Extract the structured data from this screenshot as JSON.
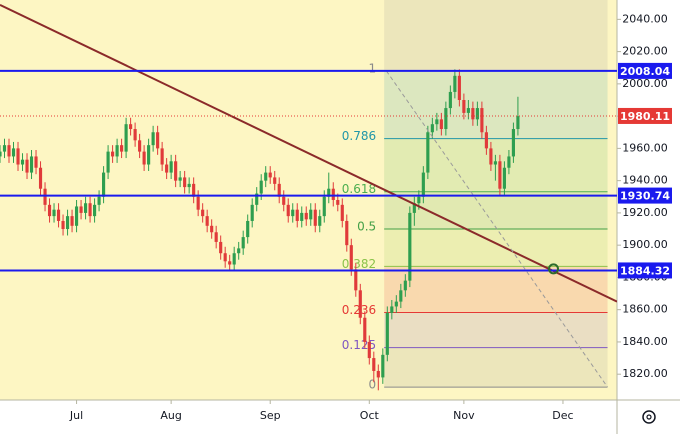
{
  "chart_data": {
    "type": "candlestick",
    "background": "#fdf6c3",
    "up_color": "#2e9e4f",
    "down_color": "#e03a3a",
    "series": {
      "open": [
        1955,
        1958,
        1962,
        1955,
        1960,
        1950,
        1953,
        1945,
        1955,
        1948,
        1935,
        1925,
        1918,
        1922,
        1915,
        1910,
        1918,
        1912,
        1924,
        1920,
        1926,
        1918,
        1925,
        1930,
        1945,
        1958,
        1955,
        1962,
        1958,
        1975,
        1972,
        1965,
        1958,
        1950,
        1962,
        1970,
        1960,
        1950,
        1945,
        1952,
        1940,
        1942,
        1936,
        1938,
        1930,
        1922,
        1918,
        1912,
        1908,
        1902,
        1895,
        1890,
        1888,
        1895,
        1898,
        1905,
        1915,
        1925,
        1932,
        1940,
        1945,
        1942,
        1938,
        1930,
        1925,
        1918,
        1922,
        1915,
        1920,
        1916,
        1922,
        1912,
        1918,
        1930,
        1935,
        1928,
        1925,
        1915,
        1900,
        1885,
        1872,
        1855,
        1840,
        1830,
        1822,
        1818,
        1832,
        1858,
        1862,
        1865,
        1872,
        1878,
        1920,
        1926,
        1930,
        1945,
        1970,
        1975,
        1978,
        1972,
        1985,
        1995,
        2005,
        1990,
        1982,
        1985,
        1978,
        1985,
        1970,
        1960,
        1950,
        1952,
        1935,
        1948,
        1955,
        1972
      ],
      "high": [
        1962,
        1966,
        1966,
        1964,
        1964,
        1957,
        1957,
        1959,
        1959,
        1952,
        1939,
        1929,
        1926,
        1926,
        1919,
        1922,
        1922,
        1928,
        1928,
        1930,
        1930,
        1929,
        1934,
        1949,
        1962,
        1962,
        1966,
        1966,
        1979,
        1979,
        1976,
        1969,
        1962,
        1966,
        1974,
        1974,
        1964,
        1954,
        1956,
        1956,
        1946,
        1946,
        1942,
        1942,
        1934,
        1926,
        1922,
        1916,
        1912,
        1906,
        1899,
        1894,
        1899,
        1902,
        1909,
        1919,
        1929,
        1936,
        1944,
        1949,
        1949,
        1946,
        1942,
        1934,
        1929,
        1926,
        1926,
        1924,
        1924,
        1926,
        1926,
        1922,
        1934,
        1945,
        1939,
        1932,
        1929,
        1919,
        1904,
        1889,
        1876,
        1859,
        1844,
        1834,
        1826,
        1836,
        1862,
        1866,
        1869,
        1876,
        1882,
        1924,
        1930,
        1934,
        1949,
        1974,
        1979,
        1982,
        1982,
        1989,
        1999,
        2009,
        2009,
        1994,
        1990,
        1989,
        1989,
        1989,
        1974,
        1964,
        1956,
        1956,
        1952,
        1959,
        1976,
        1992
      ],
      "low": [
        1951,
        1954,
        1951,
        1951,
        1946,
        1946,
        1941,
        1941,
        1944,
        1931,
        1921,
        1914,
        1914,
        1911,
        1906,
        1906,
        1908,
        1908,
        1916,
        1916,
        1914,
        1914,
        1921,
        1926,
        1941,
        1951,
        1951,
        1954,
        1954,
        1968,
        1961,
        1954,
        1946,
        1946,
        1958,
        1956,
        1946,
        1941,
        1941,
        1936,
        1936,
        1932,
        1932,
        1926,
        1918,
        1914,
        1908,
        1904,
        1898,
        1891,
        1886,
        1884,
        1884,
        1891,
        1894,
        1901,
        1911,
        1921,
        1928,
        1936,
        1938,
        1934,
        1926,
        1921,
        1914,
        1914,
        1911,
        1911,
        1912,
        1912,
        1908,
        1908,
        1914,
        1926,
        1924,
        1921,
        1911,
        1896,
        1881,
        1868,
        1851,
        1836,
        1826,
        1815,
        1810,
        1814,
        1828,
        1854,
        1858,
        1861,
        1868,
        1874,
        1912,
        1922,
        1926,
        1941,
        1966,
        1971,
        1968,
        1968,
        1981,
        1991,
        1986,
        1978,
        1978,
        1974,
        1974,
        1966,
        1956,
        1946,
        1940,
        1931,
        1931,
        1944,
        1951,
        1968
      ],
      "close": [
        1958,
        1962,
        1955,
        1960,
        1950,
        1953,
        1945,
        1955,
        1948,
        1935,
        1925,
        1918,
        1922,
        1915,
        1910,
        1918,
        1912,
        1924,
        1920,
        1926,
        1918,
        1925,
        1930,
        1945,
        1958,
        1955,
        1962,
        1958,
        1975,
        1972,
        1965,
        1958,
        1950,
        1962,
        1970,
        1960,
        1950,
        1945,
        1952,
        1940,
        1942,
        1936,
        1938,
        1930,
        1922,
        1918,
        1912,
        1908,
        1902,
        1895,
        1890,
        1888,
        1895,
        1898,
        1905,
        1915,
        1925,
        1932,
        1940,
        1945,
        1942,
        1938,
        1930,
        1925,
        1918,
        1922,
        1915,
        1920,
        1916,
        1922,
        1912,
        1918,
        1930,
        1935,
        1928,
        1925,
        1915,
        1900,
        1885,
        1872,
        1855,
        1840,
        1830,
        1822,
        1818,
        1832,
        1858,
        1862,
        1865,
        1872,
        1878,
        1920,
        1926,
        1930,
        1945,
        1970,
        1975,
        1978,
        1972,
        1985,
        1995,
        2005,
        1990,
        1982,
        1985,
        1978,
        1985,
        1970,
        1960,
        1950,
        1952,
        1935,
        1948,
        1955,
        1972,
        1980
      ]
    },
    "xlim": [
      0,
      137
    ],
    "xticks": [
      {
        "value": 17,
        "label": "Jul"
      },
      {
        "value": 38,
        "label": "Aug"
      },
      {
        "value": 60,
        "label": "Sep"
      },
      {
        "value": 82,
        "label": "Oct"
      },
      {
        "value": 103,
        "label": "Nov"
      },
      {
        "value": 125,
        "label": "Dec"
      }
    ],
    "ylim": [
      1804,
      2052
    ],
    "yticks": [
      {
        "value": 1820,
        "label": "1820.00"
      },
      {
        "value": 1840,
        "label": "1840.00"
      },
      {
        "value": 1860,
        "label": "1860.00"
      },
      {
        "value": 1880,
        "label": "1880.00"
      },
      {
        "value": 1900,
        "label": "1900.00"
      },
      {
        "value": 1920,
        "label": "1920.00"
      },
      {
        "value": 1940,
        "label": "1940.00"
      },
      {
        "value": 1960,
        "label": "1960.00"
      },
      {
        "value": 1980,
        "label": "1980.00"
      },
      {
        "value": 2000,
        "label": "2000.00"
      },
      {
        "value": 2020,
        "label": "2020.00"
      },
      {
        "value": 2040,
        "label": "2040.00"
      }
    ],
    "hlines": [
      2008.04,
      1930.74,
      1884.32
    ],
    "hline_color": "#1a1aee",
    "last_price": 1980.11,
    "last_price_color": "#e53935",
    "trendline": {
      "x": [
        0,
        137
      ],
      "y": [
        2049,
        1865
      ],
      "color": "#8b2a2a"
    },
    "projection_line": {
      "x": [
        85.8,
        134.9
      ],
      "y": [
        2008,
        1812
      ],
      "color": "#9a9a9a"
    },
    "marker": {
      "x": 122.9,
      "y": 1885.3,
      "color": "#2e6b2e"
    },
    "fibonacci": {
      "x": [
        85.3,
        134.9
      ],
      "start": 1812,
      "end": 2008,
      "levels": [
        {
          "level": 1,
          "color": "#8a8a8a"
        },
        {
          "level": 0.786,
          "color": "#2196a8"
        },
        {
          "level": 0.618,
          "color": "#4caf50"
        },
        {
          "level": 0.5,
          "color": "#43a047"
        },
        {
          "level": 0.382,
          "color": "#8bc34a"
        },
        {
          "level": 0.236,
          "color": "#e53935"
        },
        {
          "level": 0.125,
          "color": "#7e57c2"
        },
        {
          "level": 0,
          "color": "#8a8a8a"
        }
      ]
    }
  }
}
